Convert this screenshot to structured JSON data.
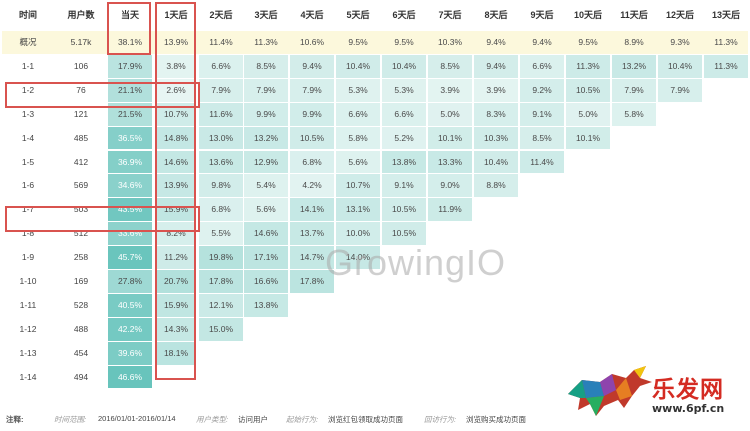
{
  "table": {
    "columns": [
      "时间",
      "用户数",
      "当天",
      "1天后",
      "2天后",
      "3天后",
      "4天后",
      "5天后",
      "6天后",
      "7天后",
      "8天后",
      "9天后",
      "10天后",
      "11天后",
      "12天后",
      "13天后"
    ],
    "rows": [
      {
        "label": "概况",
        "users": "5.17k",
        "values": [
          "38.1%",
          "13.9%",
          "11.4%",
          "11.3%",
          "10.6%",
          "9.5%",
          "9.5%",
          "10.3%",
          "9.4%",
          "9.4%",
          "9.5%",
          "8.9%",
          "9.3%",
          "11.3%"
        ]
      },
      {
        "label": "1-1",
        "users": "106",
        "values": [
          "17.9%",
          "3.8%",
          "6.6%",
          "8.5%",
          "9.4%",
          "10.4%",
          "10.4%",
          "8.5%",
          "9.4%",
          "6.6%",
          "11.3%",
          "13.2%",
          "10.4%",
          "11.3%"
        ]
      },
      {
        "label": "1-2",
        "users": "76",
        "values": [
          "21.1%",
          "2.6%",
          "7.9%",
          "7.9%",
          "7.9%",
          "5.3%",
          "5.3%",
          "3.9%",
          "3.9%",
          "9.2%",
          "10.5%",
          "7.9%",
          "7.9%"
        ]
      },
      {
        "label": "1-3",
        "users": "121",
        "values": [
          "21.5%",
          "10.7%",
          "11.6%",
          "9.9%",
          "9.9%",
          "6.6%",
          "6.6%",
          "5.0%",
          "8.3%",
          "9.1%",
          "5.0%",
          "5.8%"
        ]
      },
      {
        "label": "1-4",
        "users": "485",
        "values": [
          "36.5%",
          "14.8%",
          "13.0%",
          "13.2%",
          "10.5%",
          "5.8%",
          "5.2%",
          "10.1%",
          "10.3%",
          "8.5%",
          "10.1%"
        ]
      },
      {
        "label": "1-5",
        "users": "412",
        "values": [
          "36.9%",
          "14.6%",
          "13.6%",
          "12.9%",
          "6.8%",
          "5.6%",
          "13.8%",
          "13.3%",
          "10.4%",
          "11.4%"
        ]
      },
      {
        "label": "1-6",
        "users": "569",
        "values": [
          "34.6%",
          "13.9%",
          "9.8%",
          "5.4%",
          "4.2%",
          "10.7%",
          "9.1%",
          "9.0%",
          "8.8%"
        ]
      },
      {
        "label": "1-7",
        "users": "503",
        "values": [
          "43.5%",
          "15.9%",
          "6.8%",
          "5.6%",
          "14.1%",
          "13.1%",
          "10.5%",
          "11.9%"
        ]
      },
      {
        "label": "1-8",
        "users": "512",
        "values": [
          "33.6%",
          "8.2%",
          "5.5%",
          "14.6%",
          "13.7%",
          "10.0%",
          "10.5%"
        ]
      },
      {
        "label": "1-9",
        "users": "258",
        "values": [
          "45.7%",
          "11.2%",
          "19.8%",
          "17.1%",
          "14.7%",
          "14.0%"
        ]
      },
      {
        "label": "1-10",
        "users": "169",
        "values": [
          "27.8%",
          "20.7%",
          "17.8%",
          "16.6%",
          "17.8%"
        ]
      },
      {
        "label": "1-11",
        "users": "528",
        "values": [
          "40.5%",
          "15.9%",
          "12.1%",
          "13.8%"
        ]
      },
      {
        "label": "1-12",
        "users": "488",
        "values": [
          "42.2%",
          "14.3%",
          "15.0%"
        ]
      },
      {
        "label": "1-13",
        "users": "454",
        "values": [
          "39.6%",
          "18.1%"
        ]
      },
      {
        "label": "1-14",
        "users": "494",
        "values": [
          "46.6%"
        ]
      }
    ]
  },
  "watermark": "GrowingIO",
  "footer": {
    "note_label": "注释:",
    "time_range_label": "时间范围:",
    "time_range_value": "2016/01/01-2016/01/14",
    "user_type_label": "用户类型:",
    "user_type_value": "访问用户",
    "start_action_label": "起始行为:",
    "start_action_value": "浏览红包领取成功页面",
    "return_action_label": "回访行为:",
    "return_action_value": "浏览购买成功页面"
  },
  "brand": {
    "name": "乐发网",
    "url": "www.6pf.cn"
  },
  "colors": {
    "header_row_bg": "#fcf8dc",
    "cell_light": "#eef8f6",
    "cell_dark": "#5ec0b8",
    "highlight_border": "#d9534f",
    "brand_red": "#d42b22"
  }
}
